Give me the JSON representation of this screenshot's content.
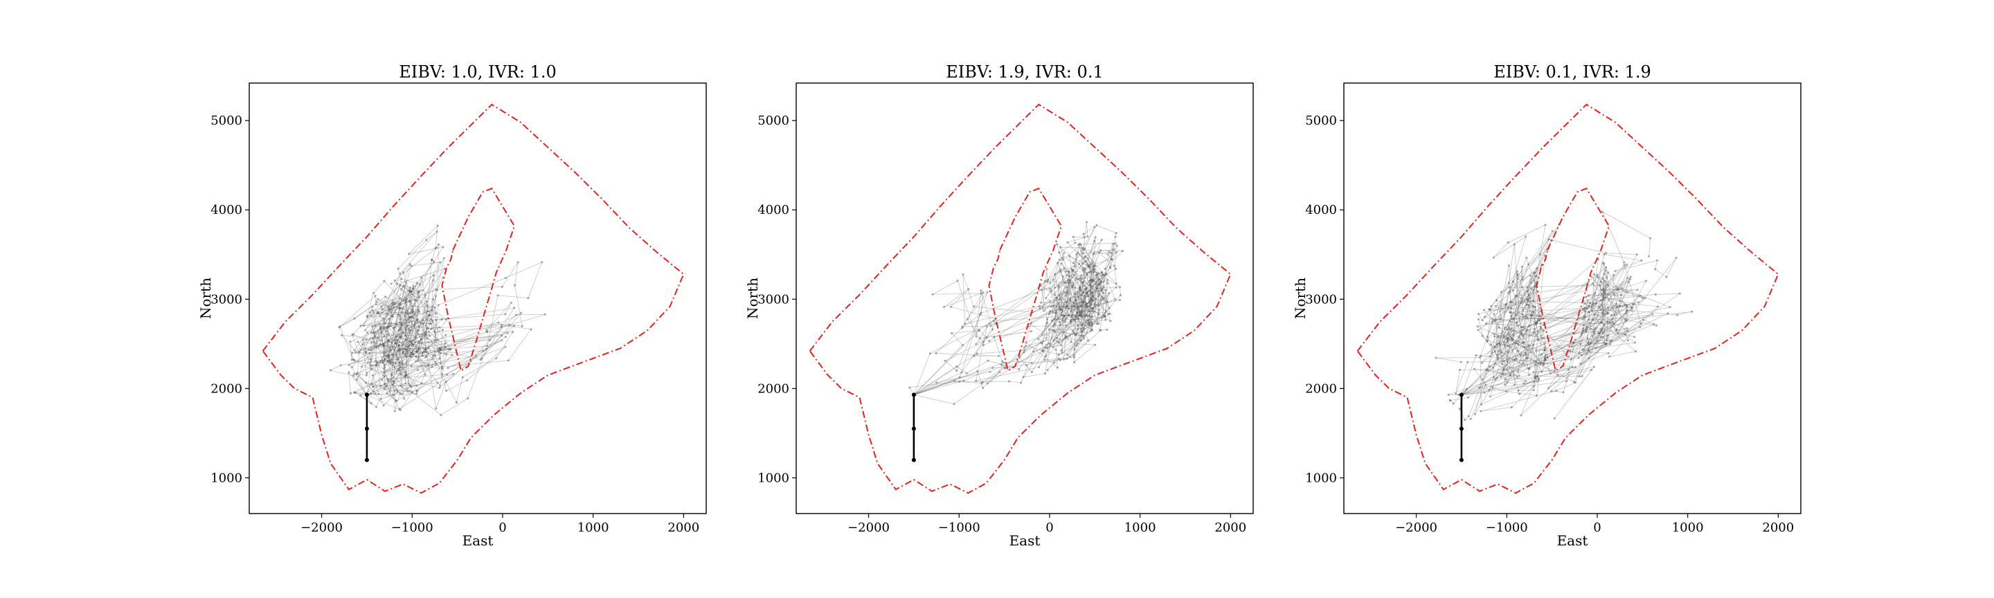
{
  "chart_data": [
    {
      "type": "line",
      "title": "EIBV: 1.0, IVR: 1.0",
      "xlabel": "East",
      "ylabel": "North",
      "xlim": [
        -2800,
        2250
      ],
      "ylim": [
        600,
        5420
      ],
      "xticks": [
        -2000,
        -1000,
        0,
        1000,
        2000
      ],
      "yticks": [
        1000,
        2000,
        3000,
        4000,
        5000
      ],
      "xtick_labels": [
        "−2000",
        "−1000",
        "0",
        "1000",
        "2000"
      ],
      "ytick_labels": [
        "1000",
        "2000",
        "3000",
        "4000",
        "5000"
      ],
      "grid": false,
      "trajectory_focus": "both",
      "start_path": [
        [
          -1500,
          1200
        ],
        [
          -1500,
          1550
        ],
        [
          -1500,
          1930
        ]
      ],
      "series": [
        {
          "style": "red-dashdot",
          "x": [
            -2650,
            -2400,
            -2100,
            -1800,
            -1500,
            -1200,
            -900,
            -600,
            -300,
            -120,
            200,
            500,
            800,
            1100,
            1400,
            1700,
            2000,
            1850,
            1600,
            1300,
            900,
            500,
            200,
            -100,
            -350,
            -500,
            -700,
            -900,
            -1100,
            -1300,
            -1500,
            -1700,
            -1900,
            -2000,
            -2100,
            -2300,
            -2450,
            -2650
          ],
          "y": [
            2420,
            2750,
            3050,
            3380,
            3700,
            4050,
            4380,
            4700,
            5000,
            5180,
            4980,
            4700,
            4420,
            4120,
            3800,
            3530,
            3280,
            2920,
            2650,
            2450,
            2300,
            2150,
            1950,
            1700,
            1450,
            1200,
            940,
            830,
            930,
            850,
            980,
            870,
            1160,
            1480,
            1900,
            2000,
            2150,
            2420
          ]
        },
        {
          "style": "red-dashdot",
          "x": [
            -550,
            -380,
            -220,
            -120,
            130,
            40,
            -70,
            -140,
            -220,
            -300,
            -380,
            -460,
            -530,
            -600,
            -670,
            -620,
            -570,
            -550
          ],
          "y": [
            3550,
            3920,
            4200,
            4240,
            3820,
            3550,
            3300,
            3050,
            2780,
            2500,
            2250,
            2200,
            2500,
            2800,
            3150,
            3350,
            3450,
            3550
          ]
        }
      ]
    },
    {
      "type": "line",
      "title": "EIBV: 1.9, IVR: 0.1",
      "xlabel": "East",
      "ylabel": "North",
      "xlim": [
        -2800,
        2250
      ],
      "ylim": [
        600,
        5420
      ],
      "xticks": [
        -2000,
        -1000,
        0,
        1000,
        2000
      ],
      "yticks": [
        1000,
        2000,
        3000,
        4000,
        5000
      ],
      "xtick_labels": [
        "−2000",
        "−1000",
        "0",
        "1000",
        "2000"
      ],
      "ytick_labels": [
        "1000",
        "2000",
        "3000",
        "4000",
        "5000"
      ],
      "grid": false,
      "trajectory_focus": "east-front",
      "start_path": [
        [
          -1500,
          1200
        ],
        [
          -1500,
          1550
        ],
        [
          -1500,
          1930
        ]
      ],
      "series": [
        {
          "style": "red-dashdot",
          "x": [
            -2650,
            -2400,
            -2100,
            -1800,
            -1500,
            -1200,
            -900,
            -600,
            -300,
            -120,
            200,
            500,
            800,
            1100,
            1400,
            1700,
            2000,
            1850,
            1600,
            1300,
            900,
            500,
            200,
            -100,
            -350,
            -500,
            -700,
            -900,
            -1100,
            -1300,
            -1500,
            -1700,
            -1900,
            -2000,
            -2100,
            -2300,
            -2450,
            -2650
          ],
          "y": [
            2420,
            2750,
            3050,
            3380,
            3700,
            4050,
            4380,
            4700,
            5000,
            5180,
            4980,
            4700,
            4420,
            4120,
            3800,
            3530,
            3280,
            2920,
            2650,
            2450,
            2300,
            2150,
            1950,
            1700,
            1450,
            1200,
            940,
            830,
            930,
            850,
            980,
            870,
            1160,
            1480,
            1900,
            2000,
            2150,
            2420
          ]
        },
        {
          "style": "red-dashdot",
          "x": [
            -550,
            -380,
            -220,
            -120,
            130,
            40,
            -70,
            -140,
            -220,
            -300,
            -380,
            -460,
            -530,
            -600,
            -670,
            -620,
            -570,
            -550
          ],
          "y": [
            3550,
            3920,
            4200,
            4240,
            3820,
            3550,
            3300,
            3050,
            2780,
            2500,
            2250,
            2200,
            2500,
            2800,
            3150,
            3350,
            3450,
            3550
          ]
        }
      ]
    },
    {
      "type": "line",
      "title": "EIBV: 0.1, IVR: 1.9",
      "xlabel": "East",
      "ylabel": "North",
      "xlim": [
        -2800,
        2250
      ],
      "ylim": [
        600,
        5420
      ],
      "xticks": [
        -2000,
        -1000,
        0,
        1000,
        2000
      ],
      "yticks": [
        1000,
        2000,
        3000,
        4000,
        5000
      ],
      "xtick_labels": [
        "−2000",
        "−1000",
        "0",
        "1000",
        "2000"
      ],
      "ytick_labels": [
        "1000",
        "2000",
        "3000",
        "4000",
        "5000"
      ],
      "grid": false,
      "trajectory_focus": "spread",
      "start_path": [
        [
          -1500,
          1200
        ],
        [
          -1500,
          1550
        ],
        [
          -1500,
          1930
        ]
      ],
      "series": [
        {
          "style": "red-dashdot",
          "x": [
            -2650,
            -2400,
            -2100,
            -1800,
            -1500,
            -1200,
            -900,
            -600,
            -300,
            -120,
            200,
            500,
            800,
            1100,
            1400,
            1700,
            2000,
            1850,
            1600,
            1300,
            900,
            500,
            200,
            -100,
            -350,
            -500,
            -700,
            -900,
            -1100,
            -1300,
            -1500,
            -1700,
            -1900,
            -2000,
            -2100,
            -2300,
            -2450,
            -2650
          ],
          "y": [
            2420,
            2750,
            3050,
            3380,
            3700,
            4050,
            4380,
            4700,
            5000,
            5180,
            4980,
            4700,
            4420,
            4120,
            3800,
            3530,
            3280,
            2920,
            2650,
            2450,
            2300,
            2150,
            1950,
            1700,
            1450,
            1200,
            940,
            830,
            930,
            850,
            980,
            870,
            1160,
            1480,
            1900,
            2000,
            2150,
            2420
          ]
        },
        {
          "style": "red-dashdot",
          "x": [
            -550,
            -380,
            -220,
            -120,
            130,
            40,
            -70,
            -140,
            -220,
            -300,
            -380,
            -460,
            -530,
            -600,
            -670,
            -620,
            -570,
            -550
          ],
          "y": [
            3550,
            3920,
            4200,
            4240,
            3820,
            3550,
            3300,
            3050,
            2780,
            2500,
            2250,
            2200,
            2500,
            2800,
            3150,
            3350,
            3450,
            3550
          ]
        }
      ]
    }
  ],
  "colors": {
    "boundary": "#e8201e",
    "trajectory": "#555555",
    "start_path": "#000000",
    "axes": "#000000"
  }
}
